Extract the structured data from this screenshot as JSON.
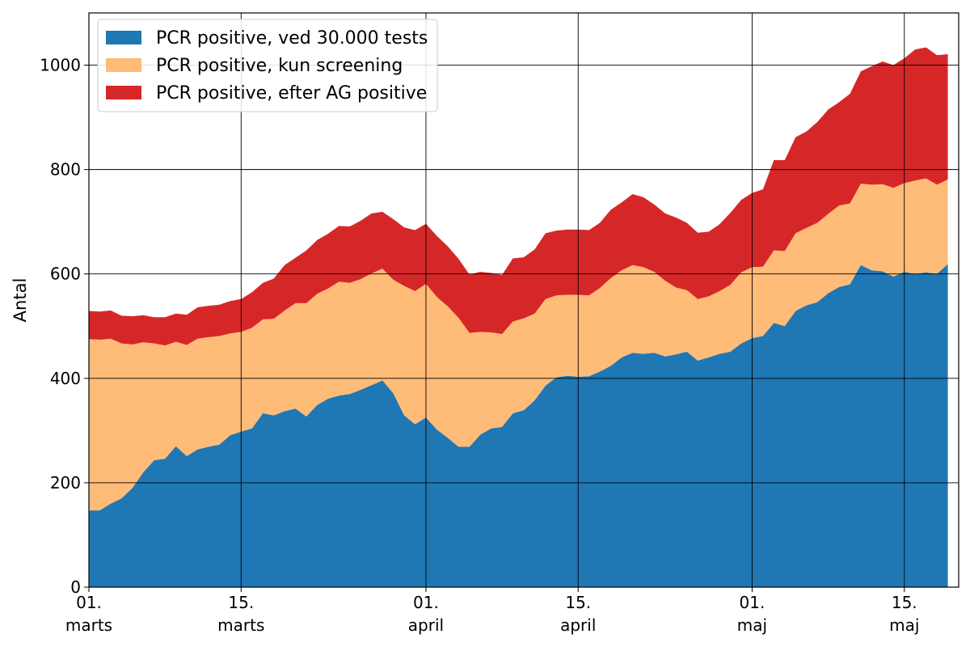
{
  "chart_data": {
    "type": "area",
    "stacked": true,
    "title": "",
    "xlabel": "",
    "ylabel": "Antal",
    "ylim": [
      0,
      1100
    ],
    "yticks": [
      0,
      200,
      400,
      600,
      800,
      1000
    ],
    "xrange": [
      "2021-03-01",
      "2021-05-20"
    ],
    "xticks": [
      {
        "date": "2021-03-01",
        "day": "01.",
        "month": "marts"
      },
      {
        "date": "2021-03-15",
        "day": "15.",
        "month": "marts"
      },
      {
        "date": "2021-04-01",
        "day": "01.",
        "month": "april"
      },
      {
        "date": "2021-04-15",
        "day": "15.",
        "month": "april"
      },
      {
        "date": "2021-05-01",
        "day": "01.",
        "month": "maj"
      },
      {
        "date": "2021-05-15",
        "day": "15.",
        "month": "maj"
      }
    ],
    "grid": true,
    "legend": "upper-left",
    "start_date": "2021-03-01",
    "series": [
      {
        "name": "PCR positive, ved 30.000 tests",
        "color": "#1f77b4",
        "values": [
          147,
          147,
          160,
          170,
          190,
          220,
          243,
          246,
          270,
          251,
          264,
          269,
          273,
          291,
          298,
          304,
          333,
          329,
          337,
          342,
          327,
          349,
          361,
          367,
          370,
          378,
          387,
          396,
          371,
          329,
          312,
          325,
          302,
          286,
          269,
          269,
          292,
          304,
          307,
          333,
          339,
          358,
          386,
          402,
          405,
          403,
          404,
          413,
          424,
          440,
          449,
          447,
          449,
          442,
          446,
          451,
          434,
          440,
          447,
          451,
          467,
          477,
          481,
          506,
          500,
          529,
          540,
          546,
          563,
          575,
          580,
          617,
          607,
          605,
          595,
          604,
          600,
          603,
          600,
          619
        ]
      },
      {
        "name": "PCR positive, kun screening",
        "color": "#ffbb78",
        "values": [
          328,
          327,
          316,
          297,
          275,
          249,
          224,
          217,
          200,
          213,
          212,
          210,
          208,
          195,
          191,
          193,
          180,
          185,
          193,
          202,
          217,
          213,
          211,
          218,
          213,
          212,
          214,
          214,
          218,
          248,
          255,
          256,
          254,
          252,
          247,
          218,
          197,
          184,
          178,
          176,
          176,
          166,
          166,
          157,
          155,
          157,
          155,
          160,
          168,
          167,
          168,
          166,
          155,
          145,
          128,
          118,
          118,
          117,
          120,
          128,
          136,
          136,
          133,
          139,
          144,
          149,
          148,
          152,
          152,
          156,
          155,
          156,
          164,
          167,
          170,
          170,
          179,
          180,
          171,
          162
        ]
      },
      {
        "name": "PCR positive, efter AG positive",
        "color": "#d62728",
        "values": [
          54,
          54,
          54,
          53,
          54,
          52,
          50,
          54,
          54,
          58,
          60,
          60,
          60,
          62,
          63,
          68,
          70,
          77,
          87,
          87,
          101,
          103,
          105,
          107,
          108,
          112,
          115,
          109,
          116,
          112,
          117,
          115,
          117,
          115,
          113,
          112,
          115,
          114,
          113,
          121,
          117,
          123,
          126,
          124,
          125,
          125,
          125,
          125,
          131,
          130,
          136,
          134,
          129,
          129,
          134,
          129,
          127,
          124,
          128,
          138,
          139,
          142,
          148,
          173,
          174,
          184,
          185,
          193,
          200,
          198,
          210,
          215,
          227,
          235,
          235,
          239,
          251,
          251,
          248,
          240
        ]
      }
    ]
  }
}
